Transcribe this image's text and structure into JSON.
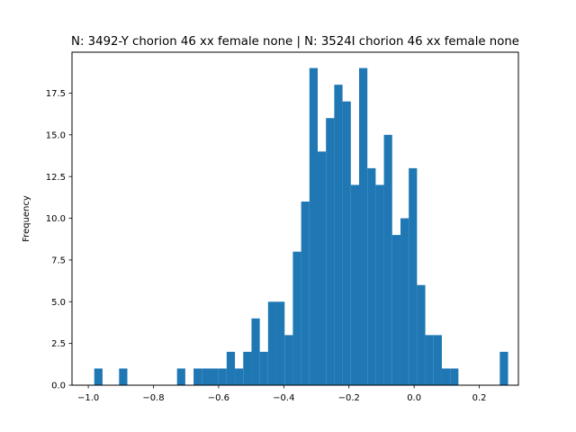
{
  "chart_data": {
    "type": "bar",
    "title": "N: 3492-Y chorion 46 xx female none | N: 3524I chorion 46 xx female none",
    "xlabel": "",
    "ylabel": "Frequency",
    "xlim": [
      -1.05,
      0.32
    ],
    "ylim": [
      0,
      19.95
    ],
    "bin_width": 0.0254,
    "bins": [
      {
        "x0": -0.9817,
        "count": 1
      },
      {
        "x0": -0.9563,
        "count": 0
      },
      {
        "x0": -0.9309,
        "count": 0
      },
      {
        "x0": -0.9055,
        "count": 1
      },
      {
        "x0": -0.8801,
        "count": 0
      },
      {
        "x0": -0.8547,
        "count": 0
      },
      {
        "x0": -0.8293,
        "count": 0
      },
      {
        "x0": -0.8039,
        "count": 0
      },
      {
        "x0": -0.7785,
        "count": 0
      },
      {
        "x0": -0.7531,
        "count": 0
      },
      {
        "x0": -0.7277,
        "count": 1
      },
      {
        "x0": -0.7023,
        "count": 0
      },
      {
        "x0": -0.6769,
        "count": 1
      },
      {
        "x0": -0.6515,
        "count": 1
      },
      {
        "x0": -0.6261,
        "count": 1
      },
      {
        "x0": -0.6007,
        "count": 1
      },
      {
        "x0": -0.5753,
        "count": 2
      },
      {
        "x0": -0.5499,
        "count": 1
      },
      {
        "x0": -0.5245,
        "count": 2
      },
      {
        "x0": -0.4991,
        "count": 4
      },
      {
        "x0": -0.4737,
        "count": 2
      },
      {
        "x0": -0.4483,
        "count": 5
      },
      {
        "x0": -0.4229,
        "count": 5
      },
      {
        "x0": -0.3975,
        "count": 3
      },
      {
        "x0": -0.3721,
        "count": 8
      },
      {
        "x0": -0.3467,
        "count": 11
      },
      {
        "x0": -0.3213,
        "count": 19
      },
      {
        "x0": -0.2959,
        "count": 14
      },
      {
        "x0": -0.2705,
        "count": 16
      },
      {
        "x0": -0.2451,
        "count": 18
      },
      {
        "x0": -0.2197,
        "count": 17
      },
      {
        "x0": -0.1943,
        "count": 12
      },
      {
        "x0": -0.1689,
        "count": 19
      },
      {
        "x0": -0.1435,
        "count": 13
      },
      {
        "x0": -0.1181,
        "count": 12
      },
      {
        "x0": -0.0927,
        "count": 15
      },
      {
        "x0": -0.0673,
        "count": 9
      },
      {
        "x0": -0.0419,
        "count": 10
      },
      {
        "x0": -0.0165,
        "count": 13
      },
      {
        "x0": 0.0089,
        "count": 6
      },
      {
        "x0": 0.0343,
        "count": 3
      },
      {
        "x0": 0.0597,
        "count": 3
      },
      {
        "x0": 0.0851,
        "count": 1
      },
      {
        "x0": 0.1105,
        "count": 1
      },
      {
        "x0": 0.1359,
        "count": 0
      },
      {
        "x0": 0.1613,
        "count": 0
      },
      {
        "x0": 0.1867,
        "count": 0
      },
      {
        "x0": 0.2121,
        "count": 0
      },
      {
        "x0": 0.2375,
        "count": 0
      },
      {
        "x0": 0.2629,
        "count": 2
      }
    ],
    "x_ticks": [
      {
        "value": -1.0,
        "label": "−1.0"
      },
      {
        "value": -0.8,
        "label": "−0.8"
      },
      {
        "value": -0.6,
        "label": "−0.6"
      },
      {
        "value": -0.4,
        "label": "−0.4"
      },
      {
        "value": -0.2,
        "label": "−0.2"
      },
      {
        "value": 0.0,
        "label": "0.0"
      },
      {
        "value": 0.2,
        "label": "0.2"
      }
    ],
    "y_ticks": [
      {
        "value": 0.0,
        "label": "0.0"
      },
      {
        "value": 2.5,
        "label": "2.5"
      },
      {
        "value": 5.0,
        "label": "5.0"
      },
      {
        "value": 7.5,
        "label": "7.5"
      },
      {
        "value": 10.0,
        "label": "10.0"
      },
      {
        "value": 12.5,
        "label": "12.5"
      },
      {
        "value": 15.0,
        "label": "15.0"
      },
      {
        "value": 17.5,
        "label": "17.5"
      }
    ],
    "colors": {
      "bar": "#1f77b4",
      "axis": "#000000",
      "background": "#ffffff"
    },
    "grid": false,
    "legend": false
  }
}
